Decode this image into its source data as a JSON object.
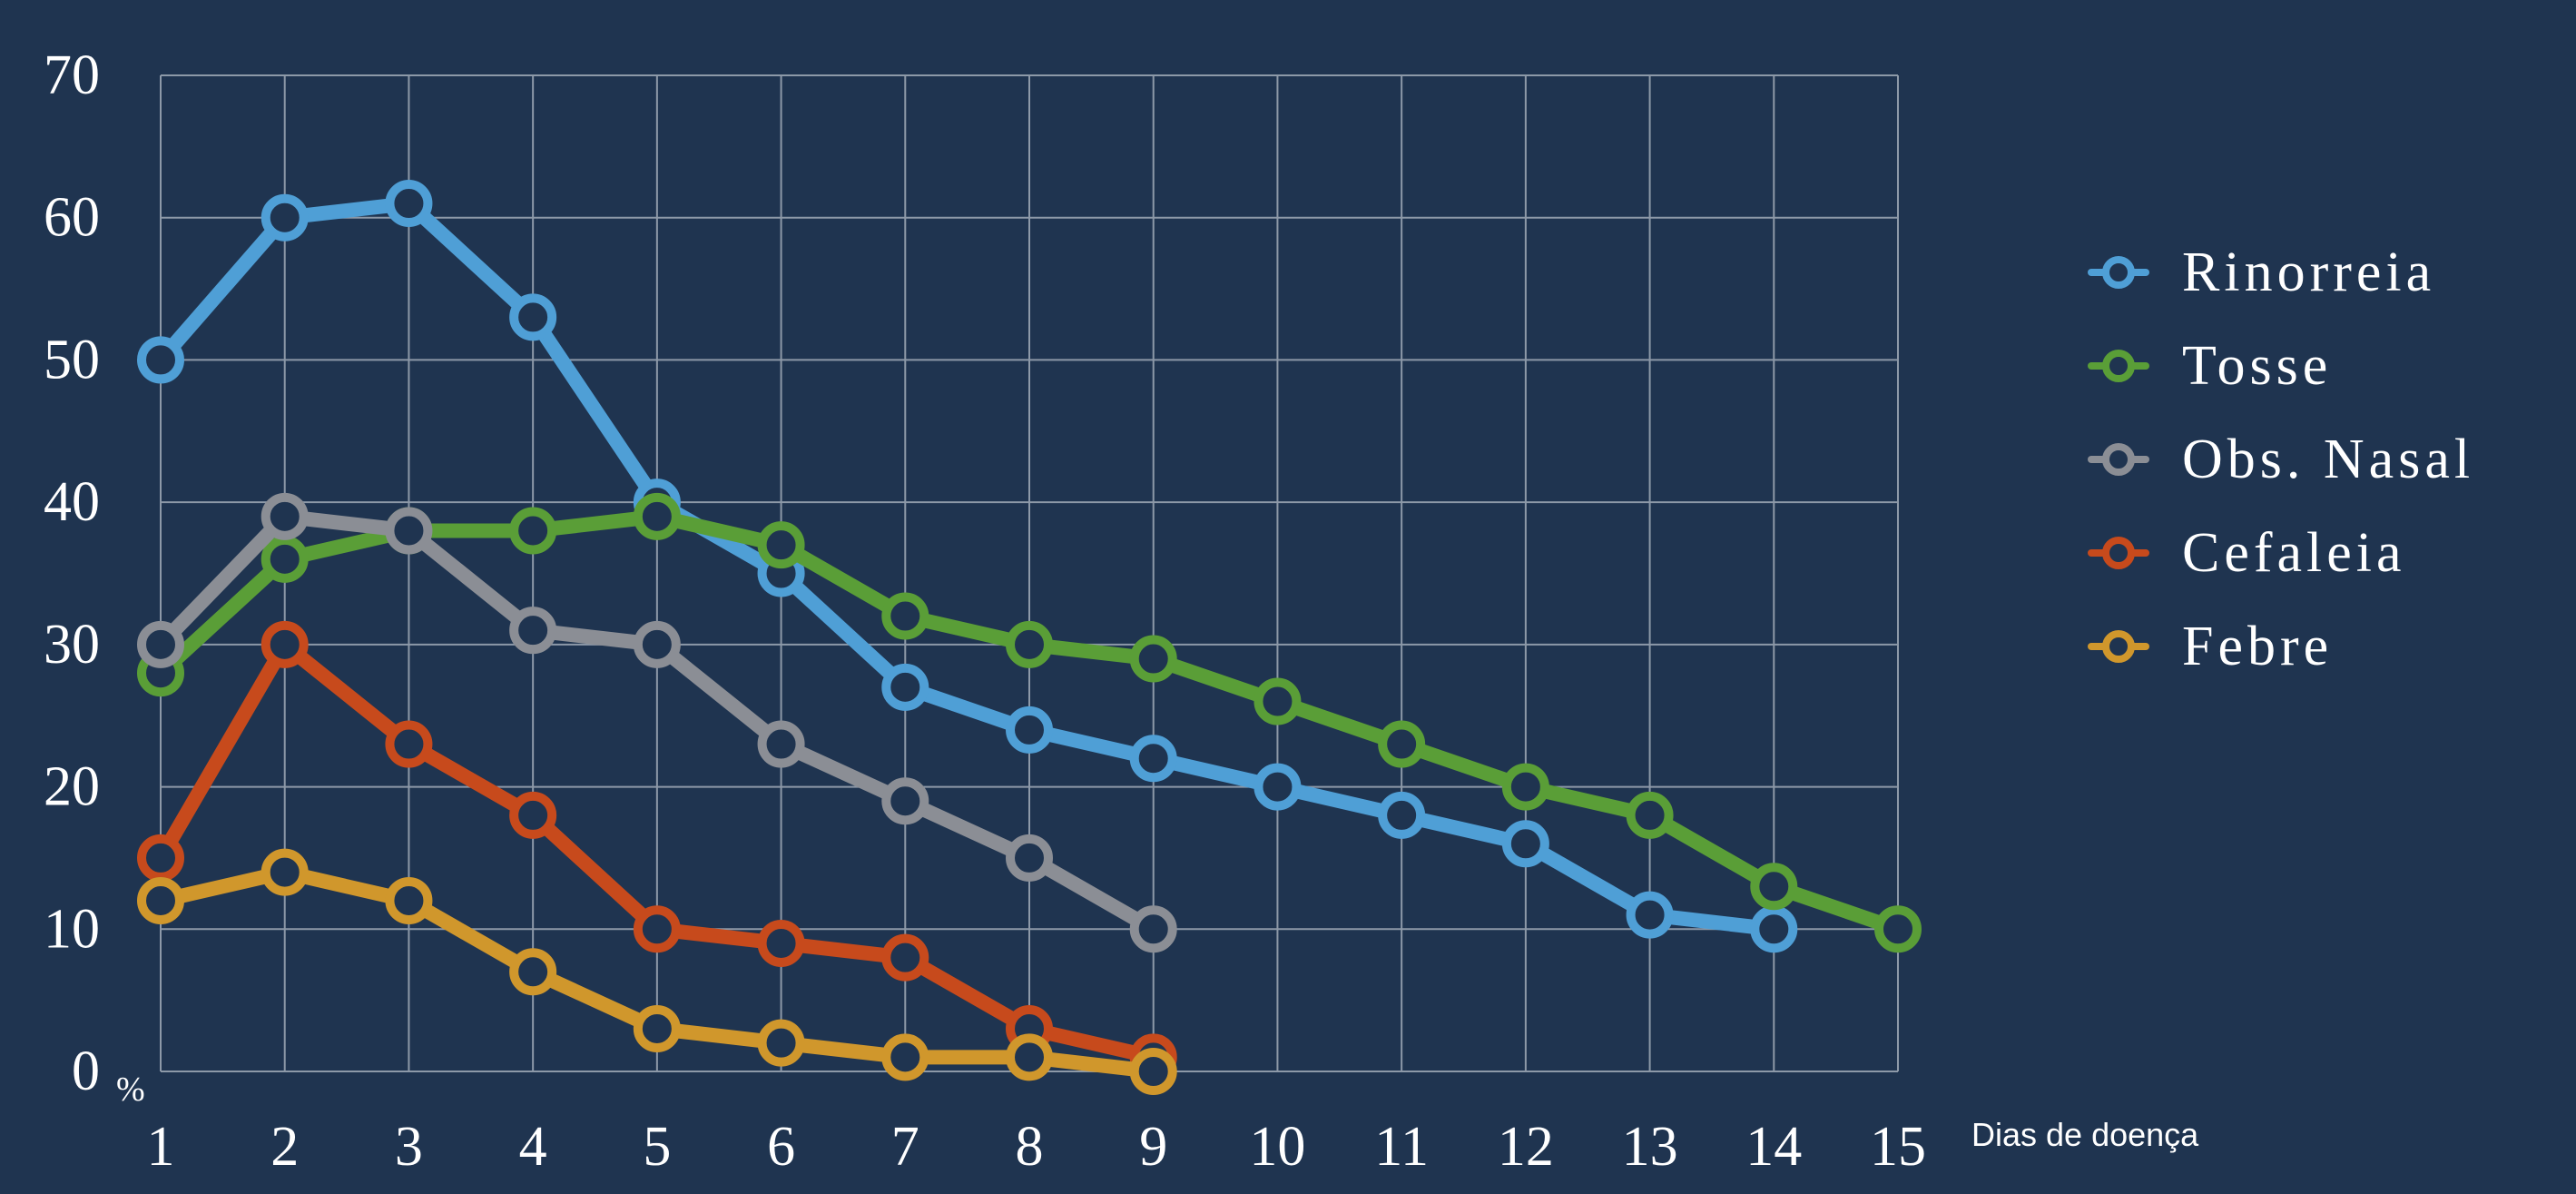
{
  "chart_data": {
    "type": "line",
    "xlabel": "Dias de doença",
    "ylabel_unit": "%",
    "ylim": [
      0,
      70
    ],
    "xlim": [
      1,
      15
    ],
    "x_ticks": [
      "1",
      "2",
      "3",
      "4",
      "5",
      "6",
      "7",
      "8",
      "9",
      "10",
      "11",
      "12",
      "13",
      "14",
      "15"
    ],
    "y_ticks": [
      "0",
      "10",
      "20",
      "30",
      "40",
      "50",
      "60",
      "70"
    ],
    "grid": true,
    "legend_position": "right",
    "series": [
      {
        "name": "Rinorreia",
        "color": "#4f9fd6",
        "x": [
          1,
          2,
          3,
          4,
          5,
          6,
          7,
          8,
          9,
          10,
          11,
          12,
          13,
          14
        ],
        "values": [
          50,
          60,
          61,
          53,
          40,
          35,
          27,
          24,
          22,
          20,
          18,
          16,
          11,
          10
        ]
      },
      {
        "name": "Tosse",
        "color": "#5a9e37",
        "x": [
          1,
          2,
          3,
          4,
          5,
          6,
          7,
          8,
          9,
          10,
          11,
          12,
          13,
          14,
          15
        ],
        "values": [
          28,
          36,
          38,
          38,
          39,
          37,
          32,
          30,
          29,
          26,
          23,
          20,
          18,
          13,
          10
        ]
      },
      {
        "name": "Obs. Nasal",
        "color": "#8b8e95",
        "x": [
          1,
          2,
          3,
          4,
          5,
          6,
          7,
          8,
          9
        ],
        "values": [
          30,
          39,
          38,
          31,
          30,
          23,
          19,
          15,
          10
        ]
      },
      {
        "name": "Cefaleia",
        "color": "#c74a1c",
        "x": [
          1,
          2,
          3,
          4,
          5,
          6,
          7,
          8,
          9
        ],
        "values": [
          15,
          30,
          23,
          18,
          10,
          9,
          8,
          3,
          1
        ]
      },
      {
        "name": "Febre",
        "color": "#d0972c",
        "x": [
          1,
          2,
          3,
          4,
          5,
          6,
          7,
          8,
          9
        ],
        "values": [
          12,
          14,
          12,
          7,
          3,
          2,
          1,
          1,
          0
        ]
      }
    ]
  }
}
